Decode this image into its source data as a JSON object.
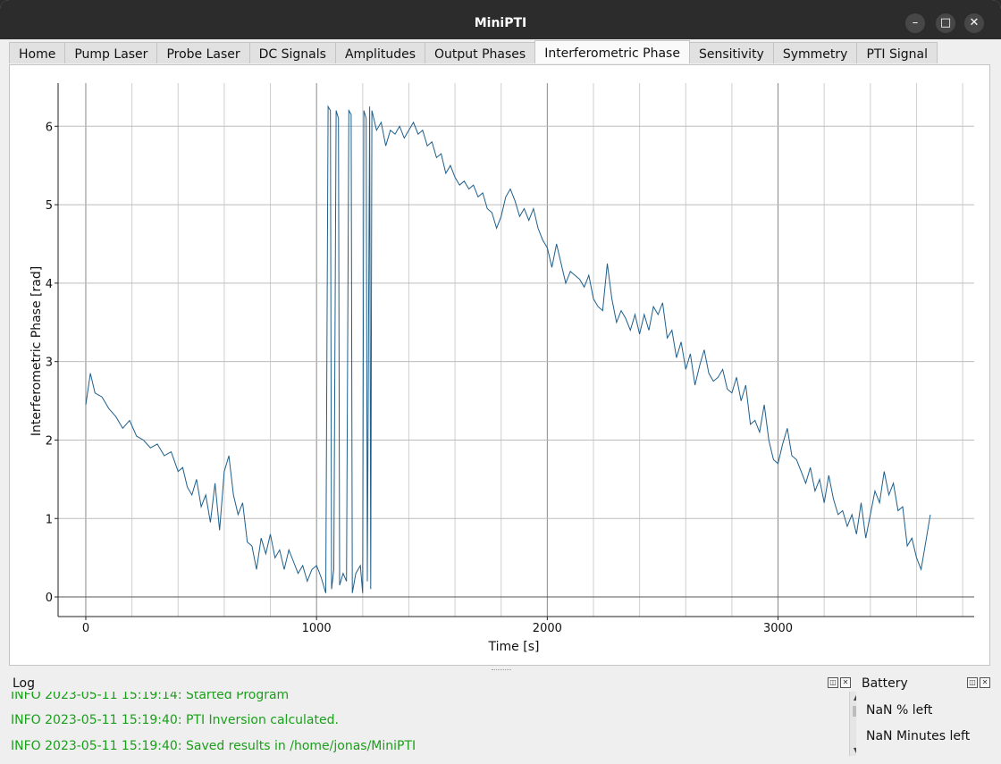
{
  "window": {
    "title": "MiniPTI"
  },
  "window_buttons": {
    "minimize": "–",
    "maximize": "□",
    "close": "✕"
  },
  "tabs": [
    {
      "label": "Home"
    },
    {
      "label": "Pump Laser"
    },
    {
      "label": "Probe Laser"
    },
    {
      "label": "DC Signals"
    },
    {
      "label": "Amplitudes"
    },
    {
      "label": "Output Phases"
    },
    {
      "label": "Interferometric Phase",
      "active": true
    },
    {
      "label": "Sensitivity"
    },
    {
      "label": "Symmetry"
    },
    {
      "label": "PTI Signal"
    }
  ],
  "chart_data": {
    "type": "line",
    "xlabel": "Time [s]",
    "ylabel": "Interferometric Phase [rad]",
    "xlim": [
      -120,
      3850
    ],
    "ylim": [
      -0.25,
      6.55
    ],
    "xticks": [
      0,
      1000,
      2000,
      3000
    ],
    "yticks": [
      0,
      1,
      2,
      3,
      4,
      5,
      6
    ],
    "grid": true,
    "series": [
      {
        "color": "#1f5f8b",
        "points": [
          [
            0,
            2.45
          ],
          [
            20,
            2.85
          ],
          [
            40,
            2.6
          ],
          [
            70,
            2.55
          ],
          [
            100,
            2.4
          ],
          [
            130,
            2.3
          ],
          [
            160,
            2.15
          ],
          [
            190,
            2.25
          ],
          [
            220,
            2.05
          ],
          [
            250,
            2.0
          ],
          [
            280,
            1.9
          ],
          [
            310,
            1.95
          ],
          [
            340,
            1.8
          ],
          [
            370,
            1.85
          ],
          [
            400,
            1.6
          ],
          [
            420,
            1.65
          ],
          [
            440,
            1.4
          ],
          [
            460,
            1.3
          ],
          [
            480,
            1.5
          ],
          [
            500,
            1.15
          ],
          [
            520,
            1.3
          ],
          [
            540,
            0.95
          ],
          [
            560,
            1.45
          ],
          [
            580,
            0.85
          ],
          [
            600,
            1.6
          ],
          [
            620,
            1.8
          ],
          [
            640,
            1.3
          ],
          [
            660,
            1.05
          ],
          [
            680,
            1.2
          ],
          [
            700,
            0.7
          ],
          [
            720,
            0.65
          ],
          [
            740,
            0.35
          ],
          [
            760,
            0.75
          ],
          [
            780,
            0.55
          ],
          [
            800,
            0.8
          ],
          [
            820,
            0.5
          ],
          [
            840,
            0.6
          ],
          [
            860,
            0.35
          ],
          [
            880,
            0.6
          ],
          [
            900,
            0.45
          ],
          [
            920,
            0.3
          ],
          [
            940,
            0.4
          ],
          [
            960,
            0.2
          ],
          [
            980,
            0.35
          ],
          [
            1000,
            0.4
          ],
          [
            1020,
            0.25
          ],
          [
            1040,
            0.05
          ],
          [
            1050,
            6.25
          ],
          [
            1060,
            6.2
          ],
          [
            1065,
            0.1
          ],
          [
            1075,
            0.35
          ],
          [
            1085,
            6.2
          ],
          [
            1095,
            6.1
          ],
          [
            1100,
            0.15
          ],
          [
            1115,
            0.3
          ],
          [
            1130,
            0.2
          ],
          [
            1140,
            6.2
          ],
          [
            1150,
            6.15
          ],
          [
            1155,
            0.05
          ],
          [
            1170,
            0.3
          ],
          [
            1190,
            0.4
          ],
          [
            1200,
            0.05
          ],
          [
            1205,
            6.2
          ],
          [
            1215,
            6.1
          ],
          [
            1220,
            0.2
          ],
          [
            1230,
            6.25
          ],
          [
            1235,
            0.1
          ],
          [
            1240,
            6.2
          ],
          [
            1260,
            5.95
          ],
          [
            1280,
            6.05
          ],
          [
            1300,
            5.75
          ],
          [
            1320,
            5.95
          ],
          [
            1340,
            5.9
          ],
          [
            1360,
            6.0
          ],
          [
            1380,
            5.85
          ],
          [
            1400,
            5.95
          ],
          [
            1420,
            6.05
          ],
          [
            1440,
            5.9
          ],
          [
            1460,
            5.95
          ],
          [
            1480,
            5.75
          ],
          [
            1500,
            5.8
          ],
          [
            1520,
            5.6
          ],
          [
            1540,
            5.65
          ],
          [
            1560,
            5.4
          ],
          [
            1580,
            5.5
          ],
          [
            1600,
            5.35
          ],
          [
            1620,
            5.25
          ],
          [
            1640,
            5.3
          ],
          [
            1660,
            5.2
          ],
          [
            1680,
            5.25
          ],
          [
            1700,
            5.1
          ],
          [
            1720,
            5.15
          ],
          [
            1740,
            4.95
          ],
          [
            1760,
            4.9
          ],
          [
            1780,
            4.7
          ],
          [
            1800,
            4.85
          ],
          [
            1820,
            5.1
          ],
          [
            1840,
            5.2
          ],
          [
            1860,
            5.05
          ],
          [
            1880,
            4.85
          ],
          [
            1900,
            4.95
          ],
          [
            1920,
            4.8
          ],
          [
            1940,
            4.95
          ],
          [
            1960,
            4.7
          ],
          [
            1980,
            4.55
          ],
          [
            2000,
            4.45
          ],
          [
            2020,
            4.2
          ],
          [
            2040,
            4.5
          ],
          [
            2060,
            4.25
          ],
          [
            2080,
            4.0
          ],
          [
            2100,
            4.15
          ],
          [
            2120,
            4.1
          ],
          [
            2140,
            4.05
          ],
          [
            2160,
            3.95
          ],
          [
            2180,
            4.1
          ],
          [
            2200,
            3.8
          ],
          [
            2220,
            3.7
          ],
          [
            2240,
            3.65
          ],
          [
            2260,
            4.25
          ],
          [
            2280,
            3.8
          ],
          [
            2300,
            3.5
          ],
          [
            2320,
            3.65
          ],
          [
            2340,
            3.55
          ],
          [
            2360,
            3.4
          ],
          [
            2380,
            3.6
          ],
          [
            2400,
            3.35
          ],
          [
            2420,
            3.6
          ],
          [
            2440,
            3.4
          ],
          [
            2460,
            3.7
          ],
          [
            2480,
            3.6
          ],
          [
            2500,
            3.75
          ],
          [
            2520,
            3.3
          ],
          [
            2540,
            3.4
          ],
          [
            2560,
            3.05
          ],
          [
            2580,
            3.25
          ],
          [
            2600,
            2.9
          ],
          [
            2620,
            3.1
          ],
          [
            2640,
            2.7
          ],
          [
            2660,
            2.95
          ],
          [
            2680,
            3.15
          ],
          [
            2700,
            2.85
          ],
          [
            2720,
            2.75
          ],
          [
            2740,
            2.8
          ],
          [
            2760,
            2.9
          ],
          [
            2780,
            2.65
          ],
          [
            2800,
            2.6
          ],
          [
            2820,
            2.8
          ],
          [
            2840,
            2.5
          ],
          [
            2860,
            2.7
          ],
          [
            2880,
            2.2
          ],
          [
            2900,
            2.25
          ],
          [
            2920,
            2.1
          ],
          [
            2940,
            2.45
          ],
          [
            2960,
            2.0
          ],
          [
            2980,
            1.75
          ],
          [
            3000,
            1.7
          ],
          [
            3020,
            1.95
          ],
          [
            3040,
            2.15
          ],
          [
            3060,
            1.8
          ],
          [
            3080,
            1.75
          ],
          [
            3100,
            1.6
          ],
          [
            3120,
            1.45
          ],
          [
            3140,
            1.65
          ],
          [
            3160,
            1.35
          ],
          [
            3180,
            1.5
          ],
          [
            3200,
            1.2
          ],
          [
            3220,
            1.55
          ],
          [
            3240,
            1.25
          ],
          [
            3260,
            1.05
          ],
          [
            3280,
            1.1
          ],
          [
            3300,
            0.9
          ],
          [
            3320,
            1.05
          ],
          [
            3340,
            0.8
          ],
          [
            3360,
            1.2
          ],
          [
            3380,
            0.75
          ],
          [
            3400,
            1.05
          ],
          [
            3420,
            1.35
          ],
          [
            3440,
            1.2
          ],
          [
            3460,
            1.6
          ],
          [
            3480,
            1.3
          ],
          [
            3500,
            1.45
          ],
          [
            3520,
            1.1
          ],
          [
            3540,
            1.15
          ],
          [
            3560,
            0.65
          ],
          [
            3580,
            0.75
          ],
          [
            3600,
            0.5
          ],
          [
            3620,
            0.35
          ],
          [
            3640,
            0.7
          ],
          [
            3660,
            1.05
          ]
        ]
      }
    ]
  },
  "log": {
    "title": "Log",
    "lines": [
      "INFO 2023-05-11 15:19:14: Started Program",
      "INFO 2023-05-11 15:19:40: PTI Inversion calculated.",
      "INFO 2023-05-11 15:19:40: Saved results in /home/jonas/MiniPTI"
    ]
  },
  "battery": {
    "title": "Battery",
    "percent_text": "NaN % left",
    "minutes_text": "NaN Minutes left"
  }
}
